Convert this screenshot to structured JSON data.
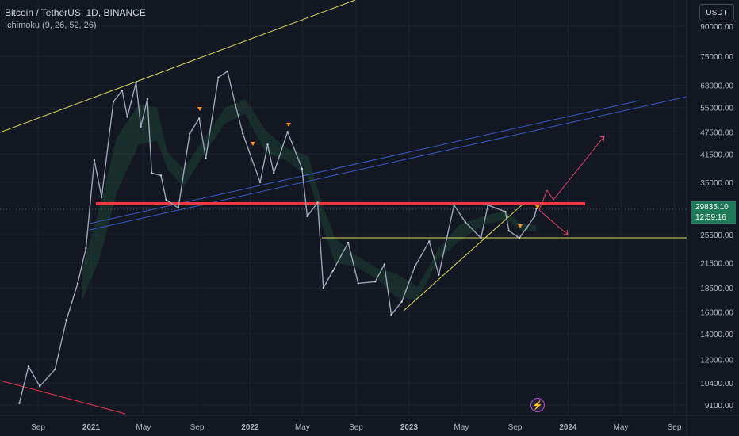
{
  "header": {
    "title": "Bitcoin / TetherUS, 1D, BINANCE",
    "indicator": "Ichimoku (9, 26, 52, 26)"
  },
  "currency_button": "USDT",
  "price_tag": {
    "price": "29835.10",
    "countdown": "12:59:16"
  },
  "event_icon": "lightning-icon",
  "colors": {
    "background": "#131722",
    "grid": "#1f2230",
    "price_line": "#9aa5b8",
    "trend_yellow": "#d8d65a",
    "trend_red": "#e43a4f",
    "channel_blue": "#3a58c4",
    "resistance_band": "#f23645",
    "price_tag_bg": "#1f7a5a"
  },
  "chart_data": {
    "type": "line",
    "y_scale": "log",
    "ylim": [
      8600,
      115000
    ],
    "ytick_labels": [
      "90000.00",
      "75000.00",
      "63000.00",
      "55000.00",
      "47500.00",
      "41500.00",
      "35000.00",
      "29835.10",
      "25500.00",
      "21500.00",
      "18500.00",
      "16000.00",
      "14000.00",
      "12000.00",
      "10400.00",
      "9100.00"
    ],
    "ytick_values": [
      90000,
      75000,
      63000,
      55000,
      47500,
      41500,
      35000,
      29835.1,
      25500,
      21500,
      18500,
      16000,
      14000,
      12000,
      10400,
      9100
    ],
    "xtick_labels": [
      "Sep",
      "2021",
      "May",
      "Sep",
      "2022",
      "May",
      "Sep",
      "2023",
      "May",
      "Sep",
      "2024",
      "May",
      "Sep"
    ],
    "xtick_dates": [
      "2020-09-01",
      "2021-01-01",
      "2021-05-01",
      "2021-09-01",
      "2022-01-01",
      "2022-05-01",
      "2022-09-01",
      "2023-01-01",
      "2023-05-01",
      "2023-09-01",
      "2024-01-01",
      "2024-05-01",
      "2024-09-01"
    ],
    "series": [
      {
        "price": [
          [
            "2020-07-20",
            9200
          ],
          [
            "2020-08-10",
            11500
          ],
          [
            "2020-09-05",
            10200
          ],
          [
            "2020-10-10",
            11300
          ],
          [
            "2020-11-05",
            15200
          ],
          [
            "2020-12-01",
            19000
          ],
          [
            "2020-12-20",
            23500
          ],
          [
            "2021-01-08",
            40000
          ],
          [
            "2021-01-25",
            32000
          ],
          [
            "2021-02-21",
            57000
          ],
          [
            "2021-03-13",
            61000
          ],
          [
            "2021-03-25",
            52000
          ],
          [
            "2021-04-14",
            64000
          ],
          [
            "2021-04-25",
            49000
          ],
          [
            "2021-05-10",
            58000
          ],
          [
            "2021-05-20",
            37000
          ],
          [
            "2021-06-10",
            36500
          ],
          [
            "2021-06-22",
            31500
          ],
          [
            "2021-07-20",
            30000
          ],
          [
            "2021-08-15",
            47000
          ],
          [
            "2021-09-06",
            51500
          ],
          [
            "2021-09-21",
            40500
          ],
          [
            "2021-10-20",
            66000
          ],
          [
            "2021-11-10",
            68500
          ],
          [
            "2021-11-28",
            56000
          ],
          [
            "2021-12-15",
            47000
          ],
          [
            "2022-01-24",
            35000
          ],
          [
            "2022-02-10",
            44000
          ],
          [
            "2022-02-24",
            37000
          ],
          [
            "2022-03-28",
            47500
          ],
          [
            "2022-04-30",
            38000
          ],
          [
            "2022-05-12",
            28500
          ],
          [
            "2022-06-05",
            31000
          ],
          [
            "2022-06-18",
            18500
          ],
          [
            "2022-07-10",
            20500
          ],
          [
            "2022-08-14",
            24300
          ],
          [
            "2022-09-06",
            19000
          ],
          [
            "2022-10-15",
            19200
          ],
          [
            "2022-11-05",
            21300
          ],
          [
            "2022-11-21",
            15700
          ],
          [
            "2022-12-15",
            17000
          ],
          [
            "2023-01-14",
            21000
          ],
          [
            "2023-02-16",
            24500
          ],
          [
            "2023-03-10",
            20000
          ],
          [
            "2023-04-14",
            30500
          ],
          [
            "2023-05-10",
            27500
          ],
          [
            "2023-06-15",
            25000
          ],
          [
            "2023-07-01",
            30500
          ],
          [
            "2023-08-10",
            29300
          ],
          [
            "2023-08-18",
            26100
          ],
          [
            "2023-09-11",
            25000
          ],
          [
            "2023-09-27",
            26500
          ],
          [
            "2023-10-16",
            28500
          ],
          [
            "2023-10-20",
            29835.1
          ]
        ]
      }
    ]
  }
}
